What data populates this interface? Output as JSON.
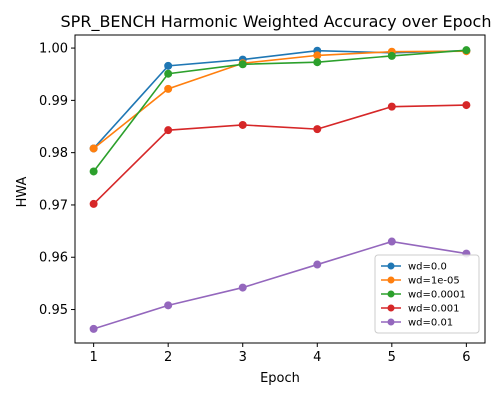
{
  "chart_data": {
    "type": "line",
    "title": "SPR_BENCH Harmonic Weighted Accuracy over Epoch",
    "xlabel": "Epoch",
    "ylabel": "HWA",
    "x": [
      1,
      2,
      3,
      4,
      5,
      6
    ],
    "xticks": [
      "1",
      "2",
      "3",
      "4",
      "5",
      "6"
    ],
    "yticks": [
      "0.95",
      "0.96",
      "0.97",
      "0.98",
      "0.99",
      "1.00"
    ],
    "xlim": [
      0.75,
      6.25
    ],
    "ylim": [
      0.9436,
      1.0025
    ],
    "grid": false,
    "legend_position": "lower-right",
    "series": [
      {
        "name": "wd=0.0",
        "color": "#1f77b4",
        "values": [
          0.9808,
          0.9966,
          0.9978,
          0.9995,
          0.9991,
          0.9995
        ]
      },
      {
        "name": "wd=1e-05",
        "color": "#ff7f0e",
        "values": [
          0.9808,
          0.9922,
          0.9971,
          0.9986,
          0.9993,
          0.9994
        ]
      },
      {
        "name": "wd=0.0001",
        "color": "#2ca02c",
        "values": [
          0.9764,
          0.9951,
          0.9969,
          0.9973,
          0.9985,
          0.9996
        ]
      },
      {
        "name": "wd=0.001",
        "color": "#d62728",
        "values": [
          0.9702,
          0.9843,
          0.9853,
          0.9845,
          0.9888,
          0.9891
        ]
      },
      {
        "name": "wd=0.01",
        "color": "#9467bd",
        "values": [
          0.9463,
          0.9508,
          0.9542,
          0.9586,
          0.963,
          0.9607
        ]
      }
    ]
  }
}
